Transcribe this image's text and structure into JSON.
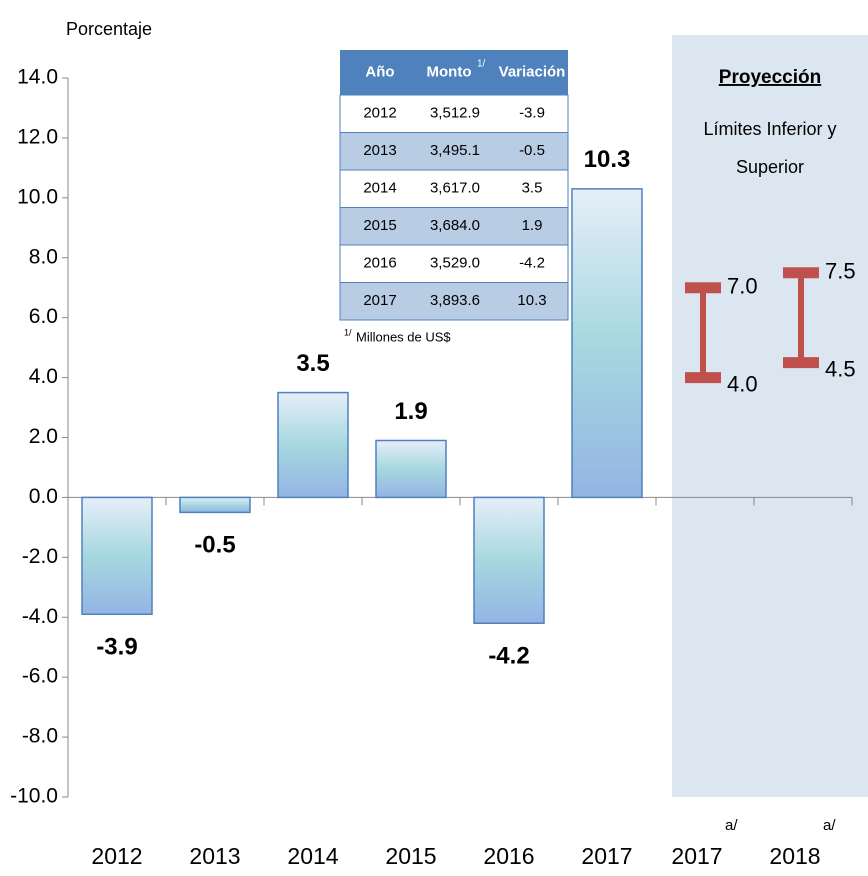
{
  "chart_data": {
    "type": "bar",
    "y_label": "Porcentaje",
    "categories": [
      "2012",
      "2013",
      "2014",
      "2015",
      "2016",
      "2017"
    ],
    "values": [
      -3.9,
      -0.5,
      3.5,
      1.9,
      -4.2,
      10.3
    ],
    "color": "#4f81bd",
    "ylim": [
      -10,
      14
    ],
    "yticks": [
      {
        "value": 14,
        "label": "14.0"
      },
      {
        "value": 12,
        "label": "12.0"
      },
      {
        "value": 10,
        "label": "10.0"
      },
      {
        "value": 8,
        "label": "8.0"
      },
      {
        "value": 6,
        "label": "6.0"
      },
      {
        "value": 4,
        "label": "4.0"
      },
      {
        "value": 2,
        "label": "2.0"
      },
      {
        "value": 0,
        "label": "0.0"
      },
      {
        "value": -2,
        "label": "-2.0"
      },
      {
        "value": -4,
        "label": "-4.0"
      },
      {
        "value": -6,
        "label": "-6.0"
      },
      {
        "value": -8,
        "label": "-8.0"
      },
      {
        "value": -10,
        "label": "-10.0"
      }
    ],
    "projection": {
      "title": "Proyección",
      "subtitle": [
        "Límites Inferior y",
        "Superior"
      ],
      "categories": [
        "2017",
        "2018"
      ],
      "note": "a/",
      "low": [
        4.0,
        4.5
      ],
      "high": [
        7.0,
        7.5
      ],
      "low_labels": [
        "4.0",
        "4.5"
      ],
      "high_labels": [
        "7.0",
        "7.5"
      ],
      "color": "#c0504d",
      "shade": "#dce6f1"
    },
    "table": {
      "headers": [
        "Año",
        "Monto",
        "Variación"
      ],
      "header_note": "1/",
      "rows": [
        [
          "2012",
          "3,512.9",
          "-3.9"
        ],
        [
          "2013",
          "3,495.1",
          "-0.5"
        ],
        [
          "2014",
          "3,617.0",
          "3.5"
        ],
        [
          "2015",
          "3,684.0",
          "1.9"
        ],
        [
          "2016",
          "3,529.0",
          "-4.2"
        ],
        [
          "2017",
          "3,893.6",
          "10.3"
        ]
      ],
      "footnote": "Millones de US$"
    }
  }
}
